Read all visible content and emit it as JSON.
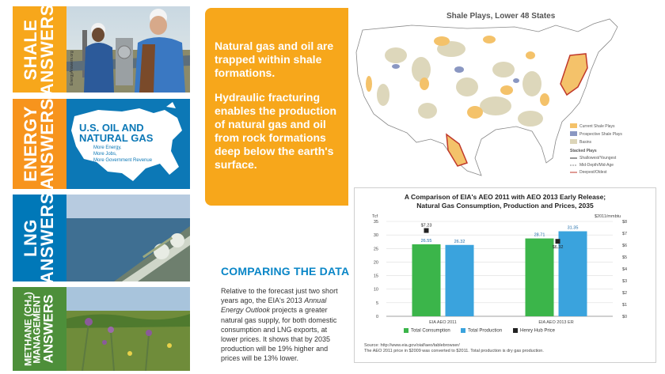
{
  "banners": [
    {
      "line1": "SHALE",
      "line2": "ANSWERS",
      "color": "#f7a71b"
    },
    {
      "line1": "ENERGY",
      "line2": "ANSWERS",
      "color": "#f7941d",
      "map_title_1": "U.S. OIL AND",
      "map_title_2": "NATURAL GAS",
      "map_sub_1": "More Energy,",
      "map_sub_2": "More Jobs,",
      "map_sub_3": "More Government Revenue"
    },
    {
      "line1": "LNG",
      "line2": "ANSWERS",
      "color": "#0078b8"
    },
    {
      "line1": "METHANE (CH₄)",
      "line2": "MANAGEMENT",
      "line3": "ANSWERS",
      "color": "#4d8f3a"
    }
  ],
  "orange_panel": {
    "para1": "Natural gas and oil are trapped within shale formations.",
    "para2": "Hydraulic fracturing enables the production of natural gas and oil from rock formations deep below the earth's surface."
  },
  "map": {
    "title": "Shale Plays, Lower 48 States",
    "legend": [
      "Current Shale Plays",
      "Prospective Shale Plays",
      "Basins"
    ],
    "stacked_title": "Stacked Plays",
    "stacked": [
      "Shallowest/Youngest",
      "Mid-Depth/Mid-Age",
      "Deepest/Oldest"
    ],
    "colors": {
      "current": "#f4c26a",
      "prospective": "#8a97c2",
      "basins": "#dcd5b8",
      "land": "#ffffff",
      "outline": "#888888"
    }
  },
  "comparing": {
    "heading": "COMPARING THE DATA",
    "text_before": "Relative to the forecast just two short years ago, the EIA's 2013 ",
    "text_italic": "Annual Energy Outlook",
    "text_after": " projects a greater natural gas supply, for both domestic consumption and LNG exports, at lower prices. It shows that by 2035 production will be 19% higher and prices will be 13% lower."
  },
  "chart_data": {
    "type": "bar",
    "title": "A Comparison of EIA's AEO 2011 with AEO 2013 Early Release; Natural Gas Consumption, Production and Prices, 2035",
    "title_line1": "A Comparison of EIA's AEO 2011 with AEO 2013 Early Release;",
    "title_line2": "Natural Gas Consumption, Production and Prices, 2035",
    "ylabel_left": "Tcf",
    "ylabel_right": "$2011/mmbtu",
    "categories": [
      "EIA AEO 2011",
      "EIA AEO 2013 ER"
    ],
    "ylim": [
      0,
      35
    ],
    "ylim_right": [
      0,
      8
    ],
    "yticks": [
      "0",
      "5",
      "10",
      "15",
      "20",
      "25",
      "30",
      "35"
    ],
    "yticks_right": [
      "$0",
      "$1",
      "$2",
      "$3",
      "$4",
      "$5",
      "$6",
      "$7",
      "$8"
    ],
    "series": [
      {
        "name": "Total Consumption",
        "values": [
          26.55,
          28.71
        ],
        "labels": [
          "26.55",
          "28.71"
        ],
        "color": "#3bb54a"
      },
      {
        "name": "Total Production",
        "values": [
          26.32,
          31.35
        ],
        "labels": [
          "26.32",
          "31.35"
        ],
        "color": "#3aa3dd"
      },
      {
        "name": "Henry Hub Price",
        "values": [
          7.23,
          6.32
        ],
        "labels": [
          "$7.23",
          "$6.32"
        ],
        "color": "#222222",
        "axis": "right"
      }
    ],
    "source": "Source: http://www.eia.gov/oiaf/aeo/tablebrowser/",
    "note": "The AEO 2011 price in $2009 was converted to $2011. Total production is dry gas production."
  }
}
